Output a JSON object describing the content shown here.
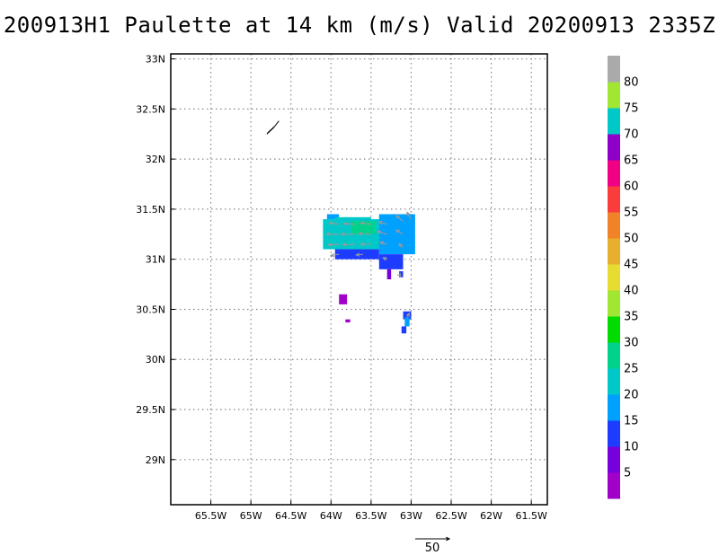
{
  "chart_data": {
    "type": "heatmap",
    "title": "200913H1 Paulette at 14 km (m/s) Valid 20200913 2335Z",
    "xlabel": "",
    "ylabel": "",
    "xlim": [
      -66.0,
      -61.3
    ],
    "ylim": [
      28.55,
      33.05
    ],
    "x_ticks": [
      {
        "value": -65.5,
        "label": "65.5W"
      },
      {
        "value": -65.0,
        "label": "65W"
      },
      {
        "value": -64.5,
        "label": "64.5W"
      },
      {
        "value": -64.0,
        "label": "64W"
      },
      {
        "value": -63.5,
        "label": "63.5W"
      },
      {
        "value": -63.0,
        "label": "63W"
      },
      {
        "value": -62.5,
        "label": "62.5W"
      },
      {
        "value": -62.0,
        "label": "62W"
      },
      {
        "value": -61.5,
        "label": "61.5W"
      }
    ],
    "y_ticks": [
      {
        "value": 33.0,
        "label": "33N"
      },
      {
        "value": 32.5,
        "label": "32.5N"
      },
      {
        "value": 32.0,
        "label": "32N"
      },
      {
        "value": 31.5,
        "label": "31.5N"
      },
      {
        "value": 31.0,
        "label": "31N"
      },
      {
        "value": 30.5,
        "label": "30.5N"
      },
      {
        "value": 30.0,
        "label": "30N"
      },
      {
        "value": 29.5,
        "label": "29.5N"
      },
      {
        "value": 29.0,
        "label": "29N"
      }
    ],
    "grid": true,
    "colorbar": {
      "levels": [
        0,
        5,
        10,
        15,
        20,
        25,
        30,
        35,
        40,
        45,
        50,
        55,
        60,
        65,
        70,
        75,
        80,
        85
      ],
      "labels": [
        "5",
        "10",
        "15",
        "20",
        "25",
        "30",
        "35",
        "40",
        "45",
        "50",
        "55",
        "60",
        "65",
        "70",
        "75",
        "80"
      ],
      "colors": [
        "#a000c8",
        "#7800dc",
        "#1e3cff",
        "#00a0ff",
        "#00c8c8",
        "#00d28c",
        "#00dc00",
        "#a0e632",
        "#e6dc32",
        "#e6af2d",
        "#f08228",
        "#fa3c3c",
        "#f00082",
        "#8c00c8",
        "#00c8c8",
        "#a0e632",
        "#aaaaaa"
      ]
    },
    "reference_vector": {
      "value": 50,
      "label": "50"
    },
    "cells": [
      {
        "lon_min": -64.05,
        "lon_max": -63.9,
        "lat_min": 31.4,
        "lat_max": 31.45,
        "value": 15
      },
      {
        "lon_min": -64.1,
        "lon_max": -63.1,
        "lat_min": 31.1,
        "lat_max": 31.4,
        "value": 22
      },
      {
        "lon_min": -63.4,
        "lon_max": -62.95,
        "lat_min": 31.05,
        "lat_max": 31.45,
        "value": 17
      },
      {
        "lon_min": -63.95,
        "lon_max": -63.5,
        "lat_min": 31.2,
        "lat_max": 31.42,
        "value": 24
      },
      {
        "lon_min": -63.75,
        "lon_max": -63.45,
        "lat_min": 31.25,
        "lat_max": 31.38,
        "value": 26
      },
      {
        "lon_min": -63.95,
        "lon_max": -63.4,
        "lat_min": 31.0,
        "lat_max": 31.1,
        "value": 12
      },
      {
        "lon_min": -63.4,
        "lon_max": -63.1,
        "lat_min": 30.9,
        "lat_max": 31.05,
        "value": 12
      },
      {
        "lon_min": -63.3,
        "lon_max": -63.25,
        "lat_min": 30.8,
        "lat_max": 30.9,
        "value": 8
      },
      {
        "lon_min": -63.15,
        "lon_max": -63.1,
        "lat_min": 30.82,
        "lat_max": 30.88,
        "value": 12
      },
      {
        "lon_min": -63.9,
        "lon_max": -63.8,
        "lat_min": 30.55,
        "lat_max": 30.65,
        "value": 4
      },
      {
        "lon_min": -63.82,
        "lon_max": -63.76,
        "lat_min": 30.37,
        "lat_max": 30.4,
        "value": 4
      },
      {
        "lon_min": -63.1,
        "lon_max": -63.0,
        "lat_min": 30.4,
        "lat_max": 30.48,
        "value": 12
      },
      {
        "lon_min": -63.08,
        "lon_max": -63.02,
        "lat_min": 30.33,
        "lat_max": 30.42,
        "value": 17
      },
      {
        "lon_min": -63.12,
        "lon_max": -63.06,
        "lat_min": 30.26,
        "lat_max": 30.33,
        "value": 12
      }
    ],
    "vectors": [
      {
        "lon": -63.9,
        "lat": 31.35,
        "u": -14,
        "v": 2
      },
      {
        "lon": -63.7,
        "lat": 31.35,
        "u": -16,
        "v": 1
      },
      {
        "lon": -63.5,
        "lat": 31.35,
        "u": -15,
        "v": 2
      },
      {
        "lon": -63.3,
        "lat": 31.35,
        "u": -12,
        "v": 3
      },
      {
        "lon": -63.1,
        "lat": 31.38,
        "u": -10,
        "v": 8
      },
      {
        "lon": -63.0,
        "lat": 31.4,
        "u": -6,
        "v": 10
      },
      {
        "lon": -63.9,
        "lat": 31.25,
        "u": -18,
        "v": 0
      },
      {
        "lon": -63.7,
        "lat": 31.25,
        "u": -20,
        "v": 0
      },
      {
        "lon": -63.5,
        "lat": 31.25,
        "u": -18,
        "v": 1
      },
      {
        "lon": -63.3,
        "lat": 31.25,
        "u": -14,
        "v": 4
      },
      {
        "lon": -63.1,
        "lat": 31.25,
        "u": -10,
        "v": 6
      },
      {
        "lon": -63.9,
        "lat": 31.15,
        "u": -16,
        "v": -1
      },
      {
        "lon": -63.7,
        "lat": 31.15,
        "u": -18,
        "v": -1
      },
      {
        "lon": -63.5,
        "lat": 31.15,
        "u": -15,
        "v": 0
      },
      {
        "lon": -63.3,
        "lat": 31.15,
        "u": -10,
        "v": 3
      },
      {
        "lon": -63.1,
        "lat": 31.12,
        "u": -6,
        "v": 5
      },
      {
        "lon": -63.9,
        "lat": 31.05,
        "u": -12,
        "v": -2
      },
      {
        "lon": -63.6,
        "lat": 31.05,
        "u": -10,
        "v": -1
      },
      {
        "lon": -63.3,
        "lat": 31.0,
        "u": -6,
        "v": 2
      },
      {
        "lon": -63.15,
        "lat": 30.85,
        "u": 2,
        "v": -3
      },
      {
        "lon": -63.05,
        "lat": 30.42,
        "u": 3,
        "v": 6
      }
    ],
    "coast": [
      [
        -64.78,
        32.27
      ],
      [
        -64.7,
        32.33
      ],
      [
        -64.65,
        32.38
      ],
      [
        -64.72,
        32.31
      ],
      [
        -64.8,
        32.25
      ]
    ]
  }
}
